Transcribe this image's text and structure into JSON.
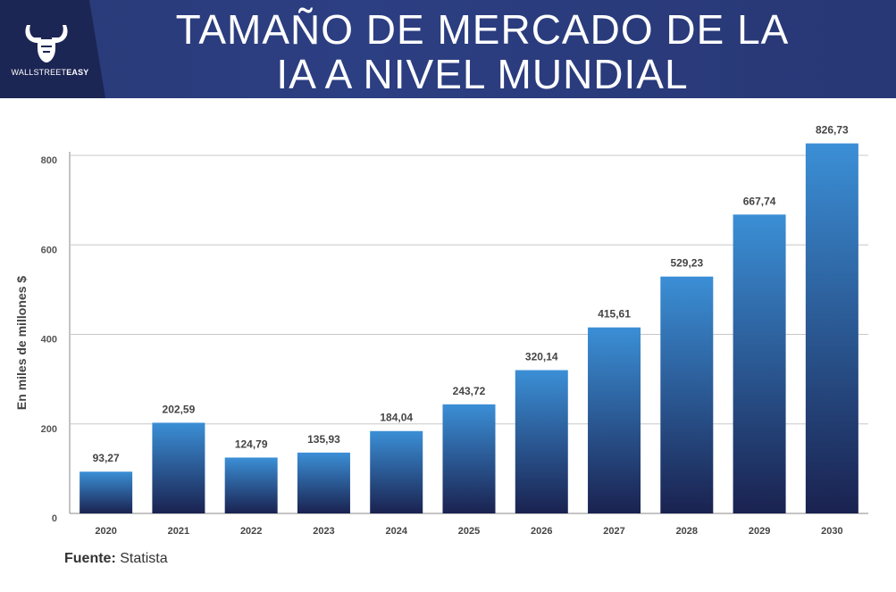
{
  "header": {
    "title": "TAMAÑO DE MERCADO DE LA IA A NIVEL MUNDIAL",
    "logo_text_regular": "WALLSTREET",
    "logo_text_bold": "EASY"
  },
  "source": {
    "label": "Fuente:",
    "value": "Statista"
  },
  "colors": {
    "header": "#2a3a78",
    "bar_top": "#3b8fd6",
    "bar_bottom": "#1a2250",
    "grid": "#c8c8c8"
  },
  "chart_data": {
    "type": "bar",
    "title": "TAMAÑO DE MERCADO DE LA IA A NIVEL MUNDIAL",
    "xlabel": "",
    "ylabel": "En miles de millones $",
    "categories": [
      "2020",
      "2021",
      "2022",
      "2023",
      "2024",
      "2025",
      "2026",
      "2027",
      "2028",
      "2029",
      "2030"
    ],
    "values": [
      93.27,
      202.59,
      124.79,
      135.93,
      184.04,
      243.72,
      320.14,
      415.61,
      529.23,
      667.74,
      826.73
    ],
    "value_labels": [
      "93,27",
      "202,59",
      "124,79",
      "135,93",
      "184,04",
      "243,72",
      "320,14",
      "415,61",
      "529,23",
      "667,74",
      "826,73"
    ],
    "ylim": [
      0,
      800
    ],
    "yticks": [
      0,
      200,
      400,
      600,
      800
    ],
    "grid": true
  }
}
